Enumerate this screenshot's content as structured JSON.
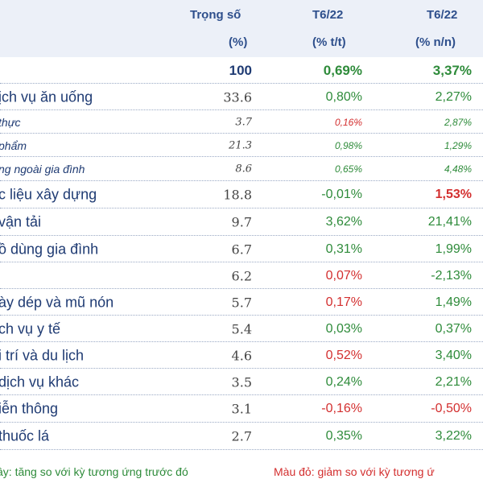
{
  "header": {
    "col_weight": "Trọng số",
    "col_mom": "T6/22",
    "col_yoy": "T6/22",
    "unit_weight": "(%)",
    "unit_mom": "(% t/t)",
    "unit_yoy": "(% n/n)"
  },
  "rows": [
    {
      "label": "",
      "weight": "100",
      "mom": "0,69%",
      "yoy": "3,37%"
    },
    {
      "label": "ịch vụ ăn uống",
      "weight": "33.6",
      "mom": "0,80%",
      "yoy": "2,27%"
    },
    {
      "label": "thực",
      "weight": "3.7",
      "mom": "0,16%",
      "yoy": "2,87%"
    },
    {
      "label": "phẩm",
      "weight": "21.3",
      "mom": "0,98%",
      "yoy": "1,29%"
    },
    {
      "label": "ng ngoài gia đình",
      "weight": "8.6",
      "mom": "0,65%",
      "yoy": "4,48%"
    },
    {
      "label": "c liệu xây dựng",
      "weight": "18.8",
      "mom": "-0,01%",
      "yoy": "1,53%"
    },
    {
      "label": "vận tải",
      "weight": "9.7",
      "mom": "3,62%",
      "yoy": "21,41%"
    },
    {
      "label": "ồ dùng gia đình",
      "weight": "6.7",
      "mom": "0,31%",
      "yoy": "1,99%"
    },
    {
      "label": "",
      "weight": "6.2",
      "mom": "0,07%",
      "yoy": "-2,13%"
    },
    {
      "label": "ày dép và mũ nón",
      "weight": "5.7",
      "mom": "0,17%",
      "yoy": "1,49%"
    },
    {
      "label": "ch vụ y tế",
      "weight": "5.4",
      "mom": "0,03%",
      "yoy": "0,37%"
    },
    {
      "label": "i trí và du lịch",
      "weight": "4.6",
      "mom": "0,52%",
      "yoy": "3,40%"
    },
    {
      "label": "dịch vụ khác",
      "weight": "3.5",
      "mom": "0,24%",
      "yoy": "2,21%"
    },
    {
      "label": "iễn thông",
      "weight": "3.1",
      "mom": "-0,16%",
      "yoy": "-0,50%"
    },
    {
      "label": "thuốc lá",
      "weight": "2.7",
      "mom": "0,35%",
      "yoy": "3,22%"
    }
  ],
  "legend": {
    "green": "ây: tăng so với kỳ tương ứng trước đó",
    "red": "Màu đỏ: giảm so với kỳ tương ứ"
  },
  "colors": {
    "header_bg": "#ecf0f8",
    "header_text": "#2e4f8c",
    "label_text": "#1f3b73",
    "increase": "#2e8b3a",
    "decrease": "#d32f2f"
  }
}
